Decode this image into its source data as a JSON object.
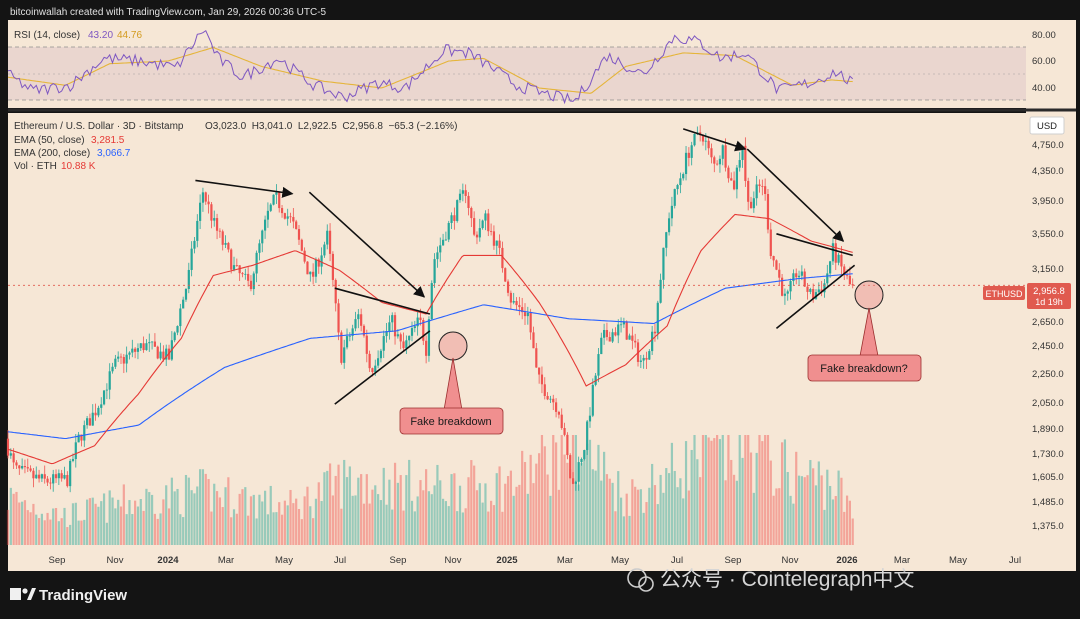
{
  "header": {
    "credit": "bitcoinwallah created with TradingView.com, Jan 29, 2026 00:36 UTC-5"
  },
  "rsi": {
    "label": "RSI (14, close)",
    "value1": "43.20",
    "value2": "44.76",
    "ticks": [
      "80.00",
      "60.00",
      "40.00"
    ],
    "color_rsi": "#7e57c2",
    "color_ma": "#e5b53a"
  },
  "legend": {
    "line1_name": "Ethereum / U.S. Dollar · 3D · Bitstamp",
    "line1_ohlc": "O3,023.0  H3,041.0  L2,922.5  C2,956.8  −65.3 (−2.16%)",
    "ema50_label": "EMA (50, close)",
    "ema50_value": "3,281.5",
    "ema200_label": "EMA (200, close)",
    "ema200_value": "3,066.7",
    "vol_label": "Vol · ETH",
    "vol_value": "10.88 K"
  },
  "colors": {
    "bg": "#f6e7d6",
    "up": "#26a69a",
    "down": "#ef5350",
    "ema50": "#e53935",
    "ema200": "#2962ff",
    "callout_bg": "#f08f8f",
    "callout_border": "#c0392b"
  },
  "price_axis": {
    "currency": "USD",
    "ticks": [
      "4,750.0",
      "4,350.0",
      "3,950.0",
      "3,550.0",
      "3,150.0",
      "2,650.0",
      "2,450.0",
      "2,250.0",
      "2,050.0",
      "1,890.0",
      "1,730.0",
      "1,605.0",
      "1,485.0",
      "1,375.0"
    ],
    "current_label": "ETHUSD",
    "current_price": "2,956.8",
    "current_countdown": "1d 19h"
  },
  "time_axis": {
    "labels": [
      "Sep",
      "Nov",
      "2024",
      "Mar",
      "May",
      "Jul",
      "Sep",
      "Nov",
      "2025",
      "Mar",
      "May",
      "Jul",
      "Sep",
      "Nov",
      "2026",
      "Mar",
      "May",
      "Jul"
    ]
  },
  "annotations": {
    "callout1": "Fake breakdown",
    "callout2": "Fake breakdown?"
  },
  "footer": {
    "brand": "TradingView",
    "watermark": "公众号 · Cointelegraph中文"
  },
  "chart_data": {
    "type": "candlestick",
    "symbol": "ETHUSD",
    "timeframe": "3D",
    "y_axis": {
      "scale": "log",
      "range": [
        1300,
        5100
      ],
      "unit": "USD"
    },
    "x_range": [
      "2023-08-15",
      "2026-07-31"
    ],
    "price_path": [
      [
        "2023-08-15",
        1820
      ],
      [
        "2023-08-25",
        1650
      ],
      [
        "2023-09-25",
        1590
      ],
      [
        "2023-10-20",
        1600
      ],
      [
        "2023-11-01",
        1820
      ],
      [
        "2023-11-20",
        2000
      ],
      [
        "2023-12-10",
        2300
      ],
      [
        "2024-01-10",
        2450
      ],
      [
        "2024-02-05",
        2350
      ],
      [
        "2024-02-25",
        3000
      ],
      [
        "2024-03-12",
        3980
      ],
      [
        "2024-03-25",
        3550
      ],
      [
        "2024-04-15",
        3100
      ],
      [
        "2024-05-01",
        2950
      ],
      [
        "2024-05-20",
        3700
      ],
      [
        "2024-05-28",
        3900
      ],
      [
        "2024-06-15",
        3600
      ],
      [
        "2024-07-05",
        3000
      ],
      [
        "2024-07-22",
        3450
      ],
      [
        "2024-08-05",
        2350
      ],
      [
        "2024-08-25",
        2700
      ],
      [
        "2024-09-06",
        2250
      ],
      [
        "2024-09-28",
        2650
      ],
      [
        "2024-10-10",
        2400
      ],
      [
        "2024-10-28",
        2650
      ],
      [
        "2024-11-04",
        2420
      ],
      [
        "2024-11-12",
        3200
      ],
      [
        "2024-11-25",
        3500
      ],
      [
        "2024-12-16",
        4000
      ],
      [
        "2024-12-25",
        3450
      ],
      [
        "2025-01-06",
        3650
      ],
      [
        "2025-01-20",
        3300
      ],
      [
        "2025-02-03",
        2800
      ],
      [
        "2025-02-20",
        2700
      ],
      [
        "2025-03-02",
        2200
      ],
      [
        "2025-03-25",
        2000
      ],
      [
        "2025-04-08",
        1550
      ],
      [
        "2025-04-22",
        1800
      ],
      [
        "2025-05-10",
        2500
      ],
      [
        "2025-06-01",
        2600
      ],
      [
        "2025-06-22",
        2300
      ],
      [
        "2025-07-05",
        2600
      ],
      [
        "2025-07-20",
        3700
      ],
      [
        "2025-08-12",
        4600
      ],
      [
        "2025-08-24",
        4800
      ],
      [
        "2025-09-05",
        4300
      ],
      [
        "2025-09-15",
        4550
      ],
      [
        "2025-09-26",
        4000
      ],
      [
        "2025-10-06",
        4650
      ],
      [
        "2025-10-11",
        3800
      ],
      [
        "2025-10-28",
        4100
      ],
      [
        "2025-11-05",
        3300
      ],
      [
        "2025-11-21",
        2800
      ],
      [
        "2025-12-03",
        3100
      ],
      [
        "2025-12-18",
        2850
      ],
      [
        "2026-01-01",
        2970
      ],
      [
        "2026-01-10",
        3300
      ],
      [
        "2026-01-20",
        3100
      ],
      [
        "2026-01-28",
        2956.8
      ]
    ],
    "ema50_path": [
      [
        "2023-08-15",
        1760
      ],
      [
        "2023-10-01",
        1680
      ],
      [
        "2023-11-15",
        1780
      ],
      [
        "2024-01-01",
        2100
      ],
      [
        "2024-02-15",
        2500
      ],
      [
        "2024-03-20",
        3050
      ],
      [
        "2024-05-01",
        3150
      ],
      [
        "2024-06-15",
        3300
      ],
      [
        "2024-08-01",
        3100
      ],
      [
        "2024-09-15",
        2800
      ],
      [
        "2024-11-01",
        2700
      ],
      [
        "2024-12-10",
        3250
      ],
      [
        "2025-01-20",
        3250
      ],
      [
        "2025-03-01",
        2800
      ],
      [
        "2025-04-20",
        2150
      ],
      [
        "2025-06-01",
        2300
      ],
      [
        "2025-07-15",
        2600
      ],
      [
        "2025-08-20",
        3300
      ],
      [
        "2025-09-25",
        3700
      ],
      [
        "2025-11-01",
        3650
      ],
      [
        "2025-12-15",
        3400
      ],
      [
        "2026-01-28",
        3281.5
      ]
    ],
    "ema200_path": [
      [
        "2023-08-15",
        1860
      ],
      [
        "2023-10-15",
        1820
      ],
      [
        "2024-01-01",
        1900
      ],
      [
        "2024-04-01",
        2280
      ],
      [
        "2024-07-01",
        2500
      ],
      [
        "2024-10-01",
        2560
      ],
      [
        "2025-01-01",
        2780
      ],
      [
        "2025-04-01",
        2660
      ],
      [
        "2025-07-01",
        2620
      ],
      [
        "2025-09-15",
        2930
      ],
      [
        "2025-12-01",
        3020
      ],
      [
        "2026-01-28",
        3066.7
      ]
    ],
    "rsi_path": [
      [
        "2023-08-15",
        50
      ],
      [
        "2023-09-10",
        38
      ],
      [
        "2023-10-20",
        42
      ],
      [
        "2023-11-25",
        62
      ],
      [
        "2024-01-01",
        60
      ],
      [
        "2024-02-10",
        55
      ],
      [
        "2024-03-10",
        84
      ],
      [
        "2024-03-25",
        62
      ],
      [
        "2024-04-20",
        48
      ],
      [
        "2024-05-28",
        62
      ],
      [
        "2024-07-05",
        42
      ],
      [
        "2024-08-05",
        33
      ],
      [
        "2024-09-10",
        44
      ],
      [
        "2024-10-10",
        40
      ],
      [
        "2024-11-20",
        68
      ],
      [
        "2024-12-16",
        66
      ],
      [
        "2025-01-10",
        55
      ],
      [
        "2025-02-05",
        42
      ],
      [
        "2025-03-05",
        36
      ],
      [
        "2025-04-08",
        30
      ],
      [
        "2025-05-12",
        64
      ],
      [
        "2025-06-20",
        50
      ],
      [
        "2025-07-22",
        78
      ],
      [
        "2025-08-18",
        74
      ],
      [
        "2025-09-10",
        62
      ],
      [
        "2025-10-06",
        66
      ],
      [
        "2025-11-10",
        38
      ],
      [
        "2025-12-15",
        44
      ],
      [
        "2026-01-10",
        52
      ],
      [
        "2026-01-28",
        43.2
      ]
    ],
    "rsi_ma_path": [
      [
        "2023-08-15",
        48
      ],
      [
        "2023-10-15",
        42
      ],
      [
        "2023-12-01",
        58
      ],
      [
        "2024-02-01",
        60
      ],
      [
        "2024-03-20",
        70
      ],
      [
        "2024-05-10",
        56
      ],
      [
        "2024-07-15",
        45
      ],
      [
        "2024-09-15",
        40
      ],
      [
        "2024-11-25",
        60
      ],
      [
        "2025-01-01",
        62
      ],
      [
        "2025-03-01",
        40
      ],
      [
        "2025-04-25",
        36
      ],
      [
        "2025-06-01",
        56
      ],
      [
        "2025-08-01",
        66
      ],
      [
        "2025-09-25",
        64
      ],
      [
        "2025-11-25",
        42
      ],
      [
        "2026-01-05",
        46
      ],
      [
        "2026-01-28",
        44.76
      ]
    ],
    "volume_scale_note": "relative",
    "volume_path": [
      [
        "2023-08-15",
        0.25
      ],
      [
        "2023-10-15",
        0.15
      ],
      [
        "2023-12-15",
        0.22
      ],
      [
        "2024-03-10",
        0.28
      ],
      [
        "2024-06-15",
        0.2
      ],
      [
        "2024-08-05",
        0.34
      ],
      [
        "2024-11-15",
        0.3
      ],
      [
        "2025-02-01",
        0.32
      ],
      [
        "2025-03-01",
        0.42
      ],
      [
        "2025-04-08",
        0.55
      ],
      [
        "2025-06-01",
        0.25
      ],
      [
        "2025-08-15",
        0.45
      ],
      [
        "2025-10-11",
        0.5
      ],
      [
        "2025-11-20",
        0.38
      ],
      [
        "2026-01-10",
        0.32
      ],
      [
        "2026-01-28",
        0.15
      ]
    ],
    "trendlines": [
      {
        "from": [
          "2024-03-01",
          4120
        ],
        "to": [
          "2024-06-12",
          3950
        ]
      },
      {
        "from": [
          "2024-06-30",
          3970
        ],
        "to": [
          "2024-10-30",
          2850
        ]
      },
      {
        "from": [
          "2024-07-27",
          2930
        ],
        "to": [
          "2024-11-05",
          2700
        ]
      },
      {
        "from": [
          "2024-07-27",
          2030
        ],
        "to": [
          "2024-11-05",
          2560
        ]
      },
      {
        "from": [
          "2025-08-01",
          4850
        ],
        "to": [
          "2025-10-06",
          4550
        ]
      },
      {
        "from": [
          "2025-10-08",
          4550
        ],
        "to": [
          "2026-01-18",
          3400
        ]
      },
      {
        "from": [
          "2025-11-08",
          3480
        ],
        "to": [
          "2026-01-28",
          3250
        ]
      },
      {
        "from": [
          "2025-11-08",
          2580
        ],
        "to": [
          "2026-01-30",
          3150
        ]
      }
    ],
    "markers": [
      {
        "at": [
          "2024-11-05",
          2450
        ],
        "label_key": "callout1"
      },
      {
        "at": [
          "2026-01-16",
          2950
        ],
        "label_key": "callout2"
      }
    ]
  }
}
